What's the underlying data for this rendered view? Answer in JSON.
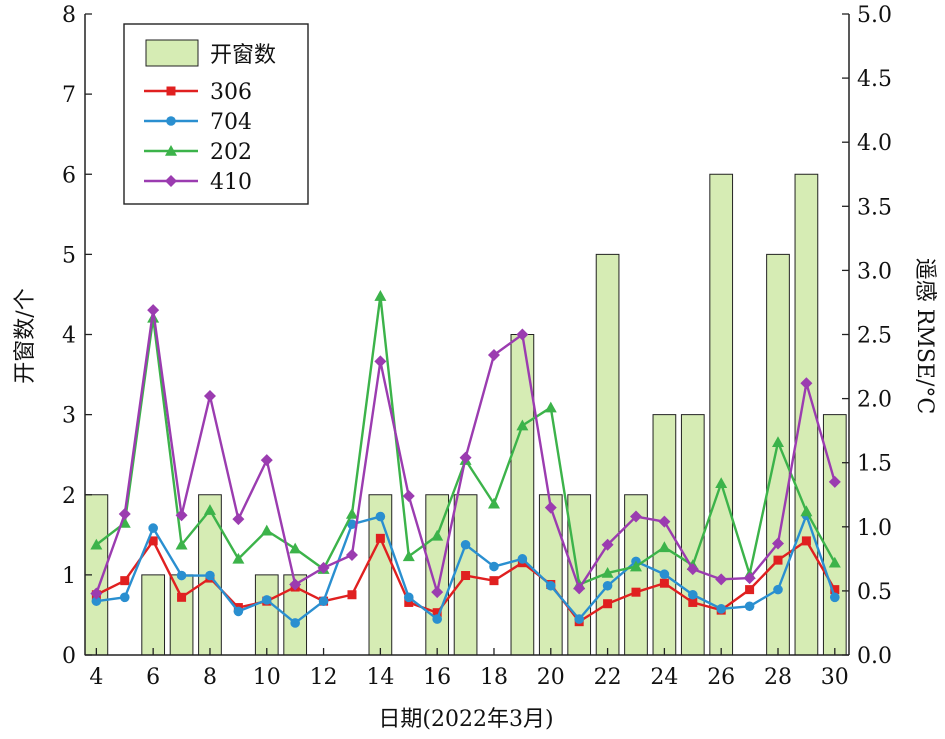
{
  "chart_data": {
    "type": "bar+line",
    "xlabel": "日期(2022年3月)",
    "ylabel_left": "开窗数/个",
    "ylabel_right": "遥感 RMSE/°C",
    "x_ticks": [
      "4",
      "6",
      "8",
      "10",
      "12",
      "14",
      "16",
      "18",
      "20",
      "22",
      "24",
      "26",
      "28",
      "30"
    ],
    "y_left_ticks": [
      "0",
      "1",
      "2",
      "3",
      "4",
      "5",
      "6",
      "7",
      "8"
    ],
    "y_right_ticks": [
      "0.0",
      "0.5",
      "1.0",
      "1.5",
      "2.0",
      "2.5",
      "3.0",
      "3.5",
      "4.0",
      "4.5",
      "5.0"
    ],
    "xlim": [
      3.6,
      30.5
    ],
    "ylim_left": [
      0,
      8
    ],
    "ylim_right": [
      0,
      5
    ],
    "legend_position": "top-left",
    "bars": {
      "name": "开窗数",
      "x": [
        4,
        6,
        7,
        8,
        10,
        11,
        14,
        16,
        17,
        19,
        20,
        21,
        22,
        23,
        24,
        25,
        26,
        28,
        29,
        30
      ],
      "values": [
        2,
        1,
        1,
        2,
        1,
        1,
        2,
        2,
        2,
        4,
        2,
        2,
        5,
        2,
        3,
        3,
        6,
        5,
        6,
        3
      ],
      "color": "#d6ecb4"
    },
    "x": [
      4,
      5,
      6,
      7,
      8,
      9,
      10,
      11,
      12,
      13,
      14,
      15,
      16,
      17,
      18,
      19,
      20,
      21,
      22,
      23,
      24,
      25,
      26,
      27,
      28,
      29,
      30
    ],
    "series": [
      {
        "name": "306",
        "color": "#e02020",
        "marker": "square",
        "values": [
          0.47,
          0.58,
          0.89,
          0.45,
          0.6,
          0.37,
          0.42,
          0.53,
          0.42,
          0.47,
          0.91,
          0.41,
          0.33,
          0.62,
          0.58,
          0.72,
          0.55,
          0.26,
          0.4,
          0.49,
          0.56,
          0.41,
          0.35,
          0.51,
          0.74,
          0.89,
          0.51
        ]
      },
      {
        "name": "704",
        "color": "#2a8fd0",
        "marker": "circle",
        "values": [
          0.42,
          0.45,
          0.99,
          0.62,
          0.62,
          0.34,
          0.43,
          0.25,
          0.42,
          1.02,
          1.08,
          0.45,
          0.28,
          0.86,
          0.69,
          0.75,
          0.54,
          0.28,
          0.54,
          0.73,
          0.63,
          0.47,
          0.36,
          0.38,
          0.51,
          1.09,
          0.45
        ]
      },
      {
        "name": "202",
        "color": "#3cb34a",
        "marker": "triangle",
        "values": [
          0.86,
          1.03,
          2.63,
          0.86,
          1.13,
          0.75,
          0.97,
          0.83,
          0.67,
          1.1,
          2.8,
          0.77,
          0.93,
          1.52,
          1.18,
          1.79,
          1.93,
          0.55,
          0.64,
          0.69,
          0.84,
          0.7,
          1.34,
          0.63,
          1.66,
          1.12,
          0.72
        ]
      },
      {
        "name": "410",
        "color": "#9b3cb0",
        "marker": "diamond",
        "values": [
          0.48,
          1.1,
          2.69,
          1.09,
          2.02,
          1.06,
          1.52,
          0.55,
          0.68,
          0.78,
          2.29,
          1.24,
          0.49,
          1.54,
          2.34,
          2.5,
          1.15,
          0.52,
          0.86,
          1.08,
          1.04,
          0.67,
          0.59,
          0.6,
          0.87,
          2.12,
          1.35
        ]
      }
    ]
  }
}
